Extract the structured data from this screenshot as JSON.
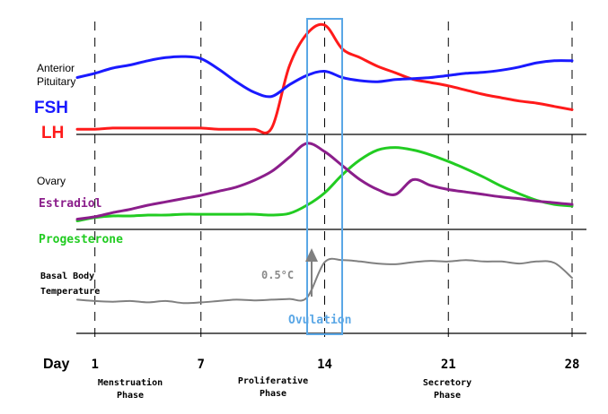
{
  "labels": {
    "anterior_pituitary_line1": "Anterior",
    "anterior_pituitary_line2": "Pituitary",
    "fsh": "FSH",
    "lh": "LH",
    "ovary": "Ovary",
    "estradiol": "Estradiol",
    "progesterone": "Progesterone",
    "basal_body_line1": "Basal Body",
    "basal_body_line2": "Temperature",
    "temp_rise": "0.5°C",
    "ovulation": "Ovulation",
    "day": "Day",
    "menstruation_line1": "Menstruation",
    "menstruation_line2": "Phase",
    "proliferative_line1": "Proliferative",
    "proliferative_line2": "Phase",
    "secretory_line1": "Secretory",
    "secretory_line2": "Phase"
  },
  "axis": {
    "ticks": [
      "1",
      "7",
      "14",
      "21",
      "28"
    ],
    "range": [
      0,
      28
    ]
  },
  "colors": {
    "fsh": "#1a1aff",
    "lh": "#ff1a1a",
    "estradiol": "#8b1e8b",
    "progesterone": "#22cc22",
    "temperature": "#808080",
    "ovulation_box": "#5aa7e6"
  },
  "chart_data": {
    "type": "line",
    "x": [
      0,
      1,
      2,
      3,
      4,
      5,
      6,
      7,
      8,
      9,
      10,
      11,
      12,
      13,
      14,
      15,
      16,
      17,
      18,
      19,
      20,
      21,
      22,
      23,
      24,
      25,
      26,
      27,
      28
    ],
    "series": [
      {
        "name": "FSH",
        "values": [
          5.0,
          5.4,
          5.9,
          6.2,
          6.6,
          6.9,
          7.0,
          6.8,
          5.8,
          4.6,
          3.6,
          3.2,
          4.3,
          5.2,
          5.6,
          5.0,
          4.7,
          4.6,
          4.8,
          4.9,
          5.0,
          5.2,
          5.4,
          5.5,
          5.7,
          6.0,
          6.4,
          6.6,
          6.6
        ]
      },
      {
        "name": "LH",
        "values": [
          0.4,
          0.4,
          0.5,
          0.5,
          0.5,
          0.5,
          0.5,
          0.5,
          0.4,
          0.4,
          0.4,
          0.5,
          6.2,
          9.2,
          10.0,
          7.8,
          7.0,
          6.2,
          5.6,
          5.0,
          4.7,
          4.4,
          4.0,
          3.6,
          3.3,
          3.0,
          2.8,
          2.5,
          2.2
        ]
      },
      {
        "name": "Estradiol",
        "values": [
          0.8,
          1.1,
          1.6,
          2.0,
          2.5,
          2.9,
          3.3,
          3.7,
          4.2,
          4.7,
          5.5,
          6.6,
          8.3,
          10.0,
          9.0,
          7.3,
          5.6,
          4.4,
          3.8,
          5.6,
          4.9,
          4.4,
          4.1,
          3.8,
          3.5,
          3.3,
          3.0,
          2.8,
          2.6
        ]
      },
      {
        "name": "Progesterone",
        "values": [
          0.6,
          1.0,
          1.2,
          1.2,
          1.3,
          1.3,
          1.4,
          1.4,
          1.4,
          1.4,
          1.4,
          1.3,
          1.5,
          2.5,
          4.0,
          6.2,
          8.0,
          9.2,
          9.5,
          9.2,
          8.6,
          7.8,
          6.9,
          5.9,
          4.8,
          3.9,
          3.1,
          2.6,
          2.4
        ]
      },
      {
        "name": "Basal Body Temperature",
        "values": [
          1.0,
          0.8,
          0.7,
          0.8,
          0.6,
          0.8,
          0.5,
          0.6,
          0.8,
          1.0,
          0.9,
          1.0,
          1.1,
          1.3,
          6.5,
          6.8,
          6.6,
          6.3,
          6.2,
          6.5,
          6.7,
          6.6,
          6.8,
          6.6,
          6.6,
          6.3,
          6.6,
          6.4,
          4.2
        ]
      }
    ]
  }
}
